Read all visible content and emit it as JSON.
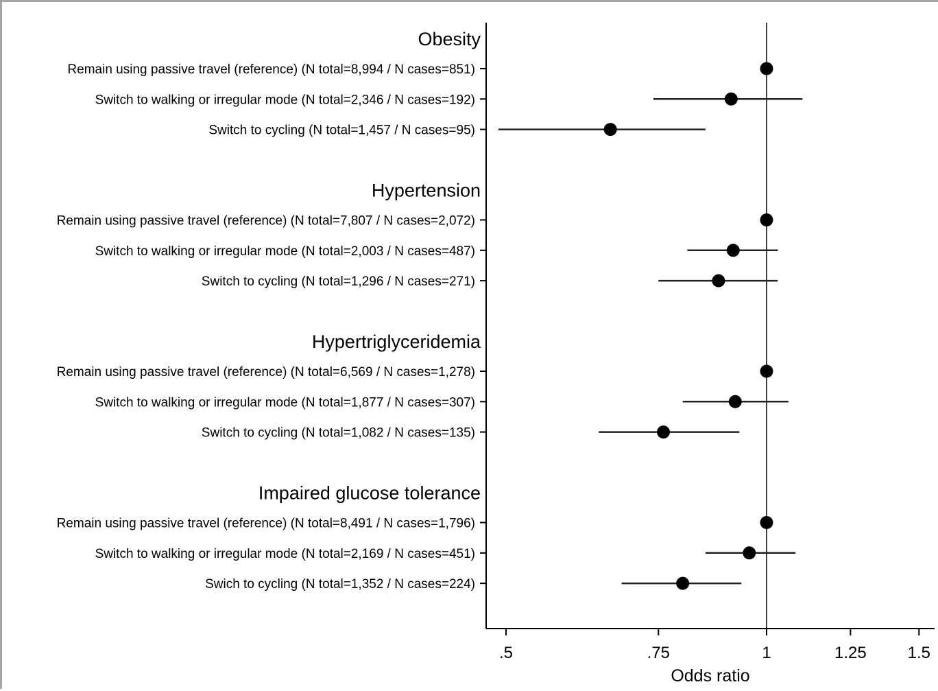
{
  "chart_data": {
    "type": "forest",
    "xlabel": "Odds ratio",
    "x_scale": "log",
    "xlim": [
      0.5,
      1.5
    ],
    "x_ticks": [
      0.5,
      0.75,
      1,
      1.25,
      1.5
    ],
    "x_tick_labels": [
      ".5",
      ".75",
      "1",
      "1.25",
      "1.5"
    ],
    "reference_line": 1,
    "groups": [
      {
        "name": "Obesity",
        "rows": [
          {
            "label": "Remain using passive travel (reference) (N total=8,994 / N cases=851)",
            "or": 1.0,
            "lo": 1.0,
            "hi": 1.0
          },
          {
            "label": "Switch to walking or irregular mode (N total=2,346 / N cases=192)",
            "or": 0.91,
            "lo": 0.74,
            "hi": 1.1
          },
          {
            "label": "Switch to cycling (N total=1,457 / N cases=95)",
            "or": 0.66,
            "lo": 0.49,
            "hi": 0.85
          }
        ]
      },
      {
        "name": "Hypertension",
        "rows": [
          {
            "label": "Remain using passive travel (reference) (N total=7,807 / N cases=2,072)",
            "or": 1.0,
            "lo": 1.0,
            "hi": 1.0
          },
          {
            "label": "Switch to walking or irregular mode (N total=2,003 / N cases=487)",
            "or": 0.915,
            "lo": 0.81,
            "hi": 1.03
          },
          {
            "label": "Switch to cycling (N total=1,296 / N cases=271)",
            "or": 0.88,
            "lo": 0.75,
            "hi": 1.03
          }
        ]
      },
      {
        "name": "Hypertriglyceridemia",
        "rows": [
          {
            "label": "Remain using passive travel (reference) (N total=6,569 / N cases=1,278)",
            "or": 1.0,
            "lo": 1.0,
            "hi": 1.0
          },
          {
            "label": "Switch to walking or irregular mode (N total=1,877 / N cases=307)",
            "or": 0.92,
            "lo": 0.8,
            "hi": 1.06
          },
          {
            "label": "Switch to cycling (N total=1,082 / N cases=135)",
            "or": 0.76,
            "lo": 0.64,
            "hi": 0.93
          }
        ]
      },
      {
        "name": "Impaired glucose tolerance",
        "rows": [
          {
            "label": "Remain using passive travel (reference) (N total=8,491 / N cases=1,796)",
            "or": 1.0,
            "lo": 1.0,
            "hi": 1.0
          },
          {
            "label": "Switch to walking or irregular mode (N total=2,169 / N cases=451)",
            "or": 0.955,
            "lo": 0.85,
            "hi": 1.08
          },
          {
            "label": "Swich to cycling (N total=1,352 / N cases=224)",
            "or": 0.8,
            "lo": 0.68,
            "hi": 0.935
          }
        ]
      }
    ]
  }
}
